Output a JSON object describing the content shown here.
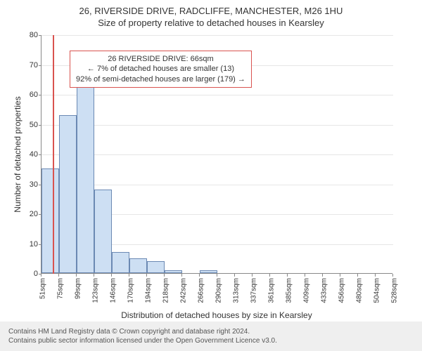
{
  "title_line1": "26, RIVERSIDE DRIVE, RADCLIFFE, MANCHESTER, M26 1HU",
  "title_line2": "Size of property relative to detached houses in Kearsley",
  "chart": {
    "type": "histogram",
    "y_axis_title": "Number of detached properties",
    "x_axis_title": "Distribution of detached houses by size in Kearsley",
    "y_ticks": [
      0,
      10,
      20,
      30,
      40,
      50,
      60,
      70,
      80
    ],
    "ylim_max": 80,
    "x_tick_labels": [
      "51sqm",
      "75sqm",
      "99sqm",
      "123sqm",
      "146sqm",
      "170sqm",
      "194sqm",
      "218sqm",
      "242sqm",
      "266sqm",
      "290sqm",
      "313sqm",
      "337sqm",
      "361sqm",
      "385sqm",
      "409sqm",
      "433sqm",
      "456sqm",
      "480sqm",
      "504sqm",
      "528sqm"
    ],
    "bar_values": [
      35,
      53,
      67,
      28,
      7,
      5,
      4,
      1,
      0,
      1,
      0,
      0,
      0,
      0,
      0,
      0,
      0,
      0,
      0,
      0
    ],
    "bar_fill_color": "#cddff3",
    "bar_border_color": "#6b89b3",
    "grid_color": "#e6e6e6",
    "axis_color": "#888888",
    "background_color": "#ffffff",
    "marker_line_color": "#d9534f",
    "marker_line_position_sqm": 66,
    "annotation_box": {
      "line1": "26 RIVERSIDE DRIVE: 66sqm",
      "line2": "← 7% of detached houses are smaller (13)",
      "line3": "92% of semi-detached houses are larger (179) →",
      "border_color": "#d9534f",
      "bg_color": "#ffffff"
    }
  },
  "footer": {
    "line1": "Contains HM Land Registry data © Crown copyright and database right 2024.",
    "line2": "Contains public sector information licensed under the Open Government Licence v3.0.",
    "bg_color": "#efefef",
    "text_color": "#555555"
  }
}
